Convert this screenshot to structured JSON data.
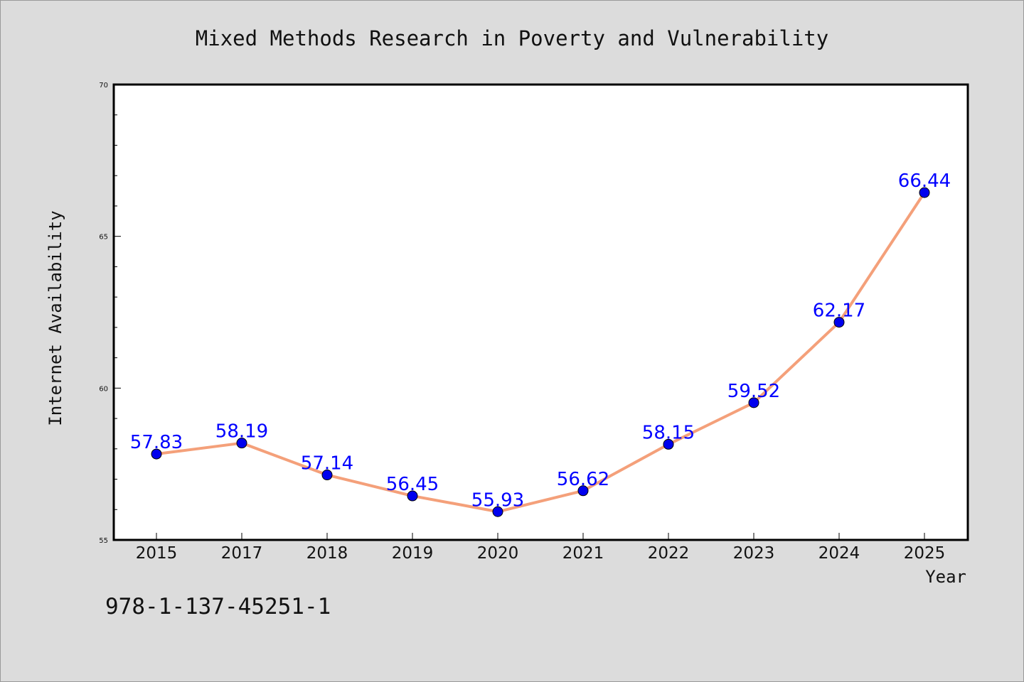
{
  "chart_data": {
    "type": "line",
    "title": "Mixed Methods Research in Poverty and Vulnerability",
    "xlabel": "Year",
    "ylabel": "Internet Availability",
    "categories": [
      "2015",
      "2017",
      "2018",
      "2019",
      "2020",
      "2021",
      "2022",
      "2023",
      "2024",
      "2025"
    ],
    "series": [
      {
        "values": [
          57.83,
          58.19,
          57.14,
          56.45,
          55.93,
          56.62,
          58.15,
          59.52,
          62.17,
          66.44
        ],
        "value_labels": [
          "57.83",
          "58.19",
          "57.14",
          "56.45",
          "55.93",
          "56.62",
          "58.15",
          "59.52",
          "62.17",
          "66.44"
        ],
        "line_color": "#f4a07a",
        "marker_color": "#0000ee",
        "label_color": "#0000ff"
      }
    ],
    "ylim": [
      55,
      70
    ],
    "yticks": [
      "55",
      "60",
      "65",
      "70"
    ],
    "grid": false,
    "legend": "none"
  },
  "footnote": "978-1-137-45251-1",
  "colors": {
    "background": "#dcdcdc",
    "plot_background": "#ffffff",
    "axis": "#000000"
  }
}
